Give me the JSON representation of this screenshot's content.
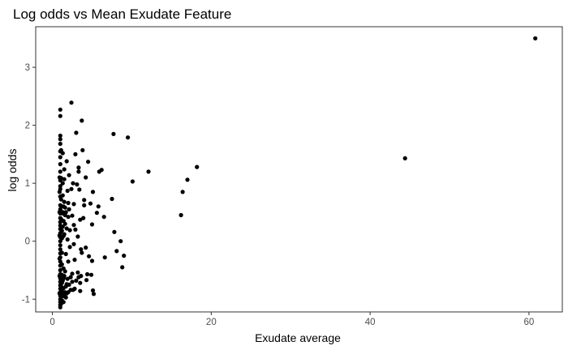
{
  "chart_data": {
    "type": "scatter",
    "title": "Log odds vs Mean Exudate Feature",
    "xlabel": "Exudate average",
    "ylabel": "log odds",
    "xlim": [
      -2.1,
      64.2
    ],
    "ylim": [
      -1.22,
      3.7
    ],
    "x_ticks": [
      0,
      20,
      40,
      60
    ],
    "y_ticks": [
      -1,
      0,
      1,
      2,
      3
    ],
    "grid": false,
    "point_color": "#000000",
    "points": [
      [
        60.8,
        3.5
      ],
      [
        44.4,
        1.43
      ],
      [
        18.2,
        1.28
      ],
      [
        17.0,
        1.06
      ],
      [
        16.4,
        0.85
      ],
      [
        16.2,
        0.45
      ],
      [
        12.1,
        1.2
      ],
      [
        10.1,
        1.03
      ],
      [
        9.5,
        1.79
      ],
      [
        7.7,
        1.85
      ],
      [
        9.0,
        -0.25
      ],
      [
        8.8,
        -0.45
      ],
      [
        8.6,
        0.0
      ],
      [
        8.1,
        -0.17
      ],
      [
        7.8,
        0.16
      ],
      [
        7.5,
        0.73
      ],
      [
        6.6,
        -0.28
      ],
      [
        6.5,
        0.42
      ],
      [
        6.2,
        1.23
      ],
      [
        5.9,
        1.2
      ],
      [
        5.8,
        0.6
      ],
      [
        5.6,
        0.49
      ],
      [
        5.2,
        -0.91
      ],
      [
        5.1,
        -0.85
      ],
      [
        5.0,
        -0.34
      ],
      [
        5.1,
        0.85
      ],
      [
        5.0,
        0.29
      ],
      [
        4.8,
        0.65
      ],
      [
        4.6,
        -0.26
      ],
      [
        4.5,
        1.37
      ],
      [
        4.3,
        -0.67
      ],
      [
        4.2,
        1.1
      ],
      [
        4.2,
        -0.11
      ],
      [
        4.0,
        0.62
      ],
      [
        4.0,
        0.71
      ],
      [
        3.8,
        1.57
      ],
      [
        3.7,
        2.08
      ],
      [
        3.6,
        -0.6
      ],
      [
        3.5,
        -0.86
      ],
      [
        3.6,
        -0.14
      ],
      [
        3.5,
        0.37
      ],
      [
        3.4,
        0.89
      ],
      [
        3.3,
        1.2
      ],
      [
        3.3,
        1.27
      ],
      [
        3.2,
        -0.54
      ],
      [
        3.2,
        0.08
      ],
      [
        3.1,
        0.98
      ],
      [
        3.0,
        1.87
      ],
      [
        2.9,
        1.5
      ],
      [
        2.8,
        -0.82
      ],
      [
        2.8,
        -0.32
      ],
      [
        2.7,
        0.28
      ],
      [
        2.7,
        0.64
      ],
      [
        2.6,
        1.0
      ],
      [
        2.5,
        -0.56
      ],
      [
        2.5,
        0.44
      ],
      [
        2.4,
        2.39
      ],
      [
        2.3,
        -0.62
      ],
      [
        2.2,
        -0.1
      ],
      [
        2.2,
        0.19
      ],
      [
        2.1,
        0.55
      ],
      [
        2.1,
        1.14
      ],
      [
        2.0,
        -0.88
      ],
      [
        2.0,
        -0.35
      ],
      [
        1.9,
        0.03
      ],
      [
        1.9,
        0.87
      ],
      [
        1.8,
        1.38
      ],
      [
        1.8,
        -0.74
      ],
      [
        1.7,
        -0.97
      ],
      [
        1.7,
        -0.22
      ],
      [
        1.6,
        0.3
      ],
      [
        1.6,
        0.58
      ],
      [
        1.5,
        1.07
      ],
      [
        1.5,
        1.24
      ],
      [
        1.4,
        -0.81
      ],
      [
        1.4,
        -0.47
      ],
      [
        1.4,
        0.09
      ],
      [
        1.3,
        0.48
      ],
      [
        1.3,
        0.79
      ],
      [
        1.3,
        1.52
      ],
      [
        1.2,
        -0.86
      ],
      [
        1.2,
        -0.58
      ],
      [
        1.2,
        -0.2
      ],
      [
        1.2,
        0.05
      ],
      [
        1.1,
        0.38
      ],
      [
        1.1,
        0.72
      ],
      [
        1.1,
        1.09
      ],
      [
        1.1,
        1.57
      ],
      [
        1.0,
        2.27
      ],
      [
        1.0,
        2.16
      ],
      [
        1.0,
        1.82
      ],
      [
        1.0,
        1.76
      ],
      [
        1.0,
        1.55
      ],
      [
        1.0,
        1.33
      ],
      [
        1.0,
        1.2
      ],
      [
        1.0,
        1.05
      ],
      [
        1.0,
        0.95
      ],
      [
        1.0,
        0.9
      ],
      [
        1.0,
        0.77
      ],
      [
        1.0,
        0.62
      ],
      [
        1.0,
        0.55
      ],
      [
        1.0,
        0.48
      ],
      [
        1.0,
        0.4
      ],
      [
        1.0,
        0.33
      ],
      [
        1.0,
        0.27
      ],
      [
        1.0,
        0.21
      ],
      [
        1.0,
        0.14
      ],
      [
        1.0,
        0.07
      ],
      [
        1.0,
        0.0
      ],
      [
        1.0,
        -0.07
      ],
      [
        1.0,
        -0.14
      ],
      [
        1.0,
        -0.21
      ],
      [
        1.0,
        -0.28
      ],
      [
        1.0,
        -0.35
      ],
      [
        1.0,
        -0.42
      ],
      [
        1.0,
        -0.5
      ],
      [
        1.0,
        -0.57
      ],
      [
        1.0,
        -0.64
      ],
      [
        1.0,
        -0.7
      ],
      [
        1.0,
        -0.76
      ],
      [
        1.0,
        -0.82
      ],
      [
        1.0,
        -0.88
      ],
      [
        1.0,
        -0.94
      ],
      [
        1.0,
        -1.0
      ],
      [
        1.0,
        -1.05
      ],
      [
        1.0,
        -1.1
      ],
      [
        1.0,
        -1.14
      ],
      [
        0.9,
        -0.9
      ],
      [
        0.9,
        -0.6
      ],
      [
        0.9,
        -0.3
      ],
      [
        0.9,
        0.1
      ],
      [
        0.9,
        0.5
      ],
      [
        0.9,
        0.85
      ],
      [
        0.9,
        1.1
      ],
      [
        1.0,
        1.45
      ],
      [
        1.0,
        1.68
      ],
      [
        1.1,
        -1.08
      ],
      [
        1.1,
        -0.96
      ],
      [
        1.1,
        -0.78
      ],
      [
        1.1,
        -0.66
      ],
      [
        1.2,
        -1.02
      ],
      [
        1.2,
        -0.72
      ],
      [
        1.2,
        -0.4
      ],
      [
        1.2,
        0.18
      ],
      [
        1.2,
        0.6
      ],
      [
        1.3,
        -0.92
      ],
      [
        1.3,
        -0.68
      ],
      [
        1.3,
        0.25
      ],
      [
        1.3,
        1.0
      ],
      [
        1.4,
        -1.05
      ],
      [
        1.4,
        -0.64
      ],
      [
        1.4,
        0.35
      ],
      [
        1.5,
        -0.95
      ],
      [
        1.5,
        -0.6
      ],
      [
        1.5,
        0.12
      ],
      [
        1.6,
        -0.88
      ],
      [
        1.6,
        -0.52
      ],
      [
        1.7,
        -0.78
      ],
      [
        1.8,
        -0.9
      ],
      [
        1.8,
        0.22
      ],
      [
        1.9,
        -0.65
      ],
      [
        2.0,
        0.66
      ],
      [
        2.1,
        -0.75
      ],
      [
        2.3,
        -0.84
      ],
      [
        2.5,
        -0.7
      ],
      [
        2.6,
        -0.84
      ],
      [
        3.0,
        -0.68
      ],
      [
        3.3,
        -0.62
      ],
      [
        3.5,
        -0.72
      ],
      [
        4.4,
        -0.57
      ],
      [
        3.9,
        0.4
      ],
      [
        2.9,
        0.2
      ],
      [
        2.4,
        0.9
      ],
      [
        1.5,
        0.68
      ],
      [
        1.4,
        0.6
      ],
      [
        1.6,
        0.45
      ],
      [
        1.7,
        0.5
      ],
      [
        1.3,
        0.5
      ],
      [
        2.0,
        0.42
      ],
      [
        2.7,
        -0.05
      ],
      [
        3.7,
        -0.2
      ],
      [
        4.9,
        -0.58
      ]
    ]
  }
}
